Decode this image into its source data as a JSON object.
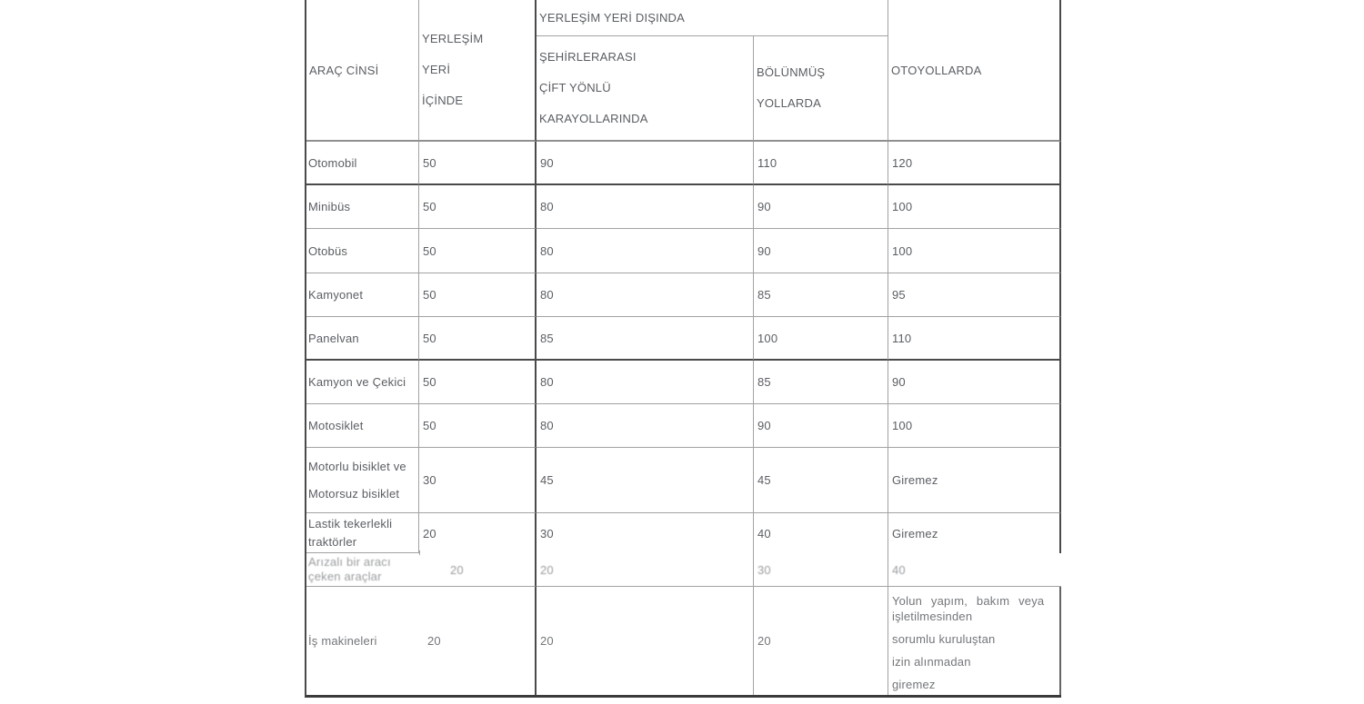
{
  "colors": {
    "thick": "#4a4a4a",
    "thin": "#a2a2a2",
    "med": "#8f8f8f",
    "txt": "#5a5e63"
  },
  "table": {
    "header": {
      "arac_cinsi": "ARAÇ CİNSİ",
      "yerlesim_ici_lines": [
        "YERLEŞİM",
        "YERİ",
        "İÇİNDE"
      ],
      "disinda_span": "YERLEŞİM YERİ DIŞINDA",
      "sehirlerarasi_lines": [
        "ŞEHİRLERARASI",
        "ÇİFT YÖNLÜ",
        "KARAYOLLARINDA"
      ],
      "bolunmus_lines": [
        "BÖLÜNMÜŞ",
        "YOLLARDA"
      ],
      "otoyollarda": "OTOYOLLARDA"
    },
    "rows": [
      {
        "label_lines": [
          "Otomobil"
        ],
        "values": [
          "50",
          "90",
          "110",
          "120"
        ]
      },
      {
        "label_lines": [
          "Minibüs"
        ],
        "values": [
          "50",
          "80",
          "90",
          "100"
        ]
      },
      {
        "label_lines": [
          "Otobüs"
        ],
        "values": [
          "50",
          "80",
          "90",
          "100"
        ]
      },
      {
        "label_lines": [
          "Kamyonet"
        ],
        "values": [
          "50",
          "80",
          "85",
          "95"
        ]
      },
      {
        "label_lines": [
          "Panelvan"
        ],
        "values": [
          "50",
          "85",
          "100",
          "110"
        ]
      },
      {
        "label_lines": [
          "Kamyon ve Çekici"
        ],
        "values": [
          "50",
          "80",
          "85",
          "90"
        ]
      },
      {
        "label_lines": [
          "Motosiklet"
        ],
        "values": [
          "50",
          "80",
          "90",
          "100"
        ]
      },
      {
        "label_lines": [
          "Motorlu bisiklet ve",
          "Motorsuz bisiklet"
        ],
        "values": [
          "30",
          "45",
          "45",
          "Giremez"
        ]
      },
      {
        "label_lines": [
          "Lastik tekerlekli",
          "traktörler"
        ],
        "values": [
          "20",
          "30",
          "40",
          "Giremez"
        ]
      },
      {
        "label_lines": [
          "Arızalı bir aracı",
          "çeken araçlar"
        ],
        "values": [
          "20",
          "20",
          "30",
          "40"
        ]
      },
      {
        "label_lines": [
          "İş makineleri"
        ],
        "values": [
          "20",
          "20",
          "20"
        ],
        "note_lines": [
          "Yolun yapım, bakım veya",
          "işletilmesinden",
          "sorumlu kuruluştan",
          "izin alınmadan",
          "giremez"
        ]
      }
    ]
  }
}
